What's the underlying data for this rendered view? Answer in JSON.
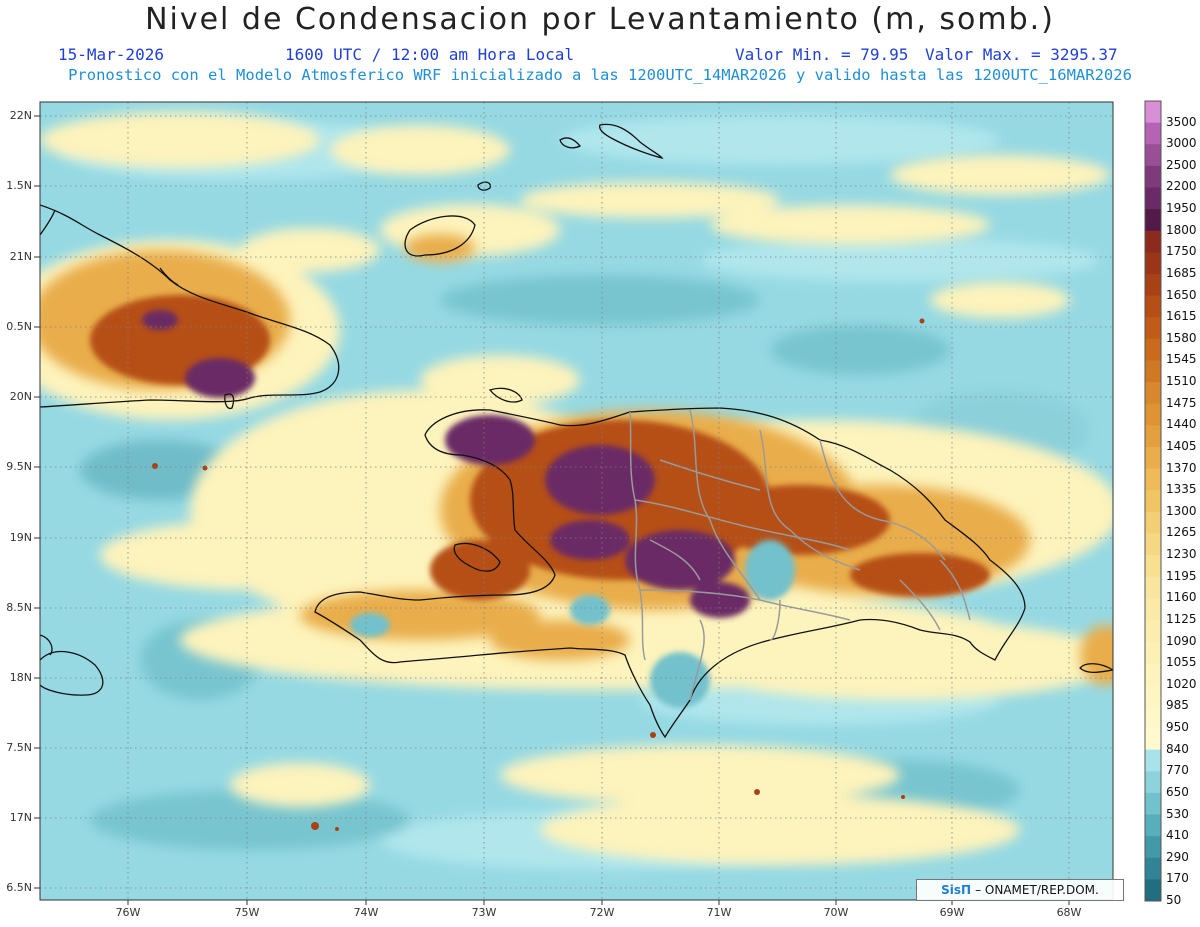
{
  "header": {
    "title": "Nivel de Condensacion por Levantamiento (m, somb.)",
    "date": "15-Mar-2026",
    "time": "1600 UTC / 12:00 am Hora Local",
    "min_value": "Valor Min. = 79.95",
    "max_value": "Valor Max. = 3295.37",
    "forecast_line": "Pronostico con el Modelo Atmosferico WRF inicializado a las 1200UTC_14MAR2026 y valido hasta las  1200UTC_16MAR2026"
  },
  "axes": {
    "latitudes": [
      "22N",
      "1.5N",
      "21N",
      "0.5N",
      "20N",
      "9.5N",
      "19N",
      "8.5N",
      "18N",
      "7.5N",
      "17N",
      "6.5N"
    ],
    "longitudes": [
      "76W",
      "75W",
      "74W",
      "73W",
      "72W",
      "71W",
      "70W",
      "69W",
      "68W"
    ]
  },
  "colorbar": {
    "labels": [
      "3500",
      "3000",
      "2500",
      "2200",
      "1950",
      "1800",
      "1750",
      "1685",
      "1650",
      "1615",
      "1580",
      "1545",
      "1510",
      "1475",
      "1440",
      "1405",
      "1370",
      "1335",
      "1300",
      "1265",
      "1230",
      "1195",
      "1160",
      "1125",
      "1090",
      "1055",
      "1020",
      "985",
      "950",
      "840",
      "770",
      "650",
      "530",
      "410",
      "290",
      "170",
      "50"
    ],
    "colors": [
      "#d98fd6",
      "#b563b4",
      "#9a4e96",
      "#7f3a7c",
      "#6a2a65",
      "#521a48",
      "#8b2a1d",
      "#9a3517",
      "#a84216",
      "#b64f15",
      "#c05c17",
      "#c96a1c",
      "#d07824",
      "#d8872e",
      "#de9435",
      "#e4a040",
      "#e9ad4c",
      "#eeba5a",
      "#f1c466",
      "#f3ce74",
      "#f6d783",
      "#f8df91",
      "#f9e59f",
      "#fae9a7",
      "#fbedae",
      "#fcf0b5",
      "#fdf3bc",
      "#fdf5c2",
      "#fef7c8",
      "#fef9cf",
      "#a9e3ea",
      "#8dd3dc",
      "#72c1cc",
      "#59aebb",
      "#4499a8",
      "#318395",
      "#216e80"
    ]
  },
  "credit": {
    "logo": "SisΠ",
    "text": "– ONAMET/REP.DOM."
  }
}
